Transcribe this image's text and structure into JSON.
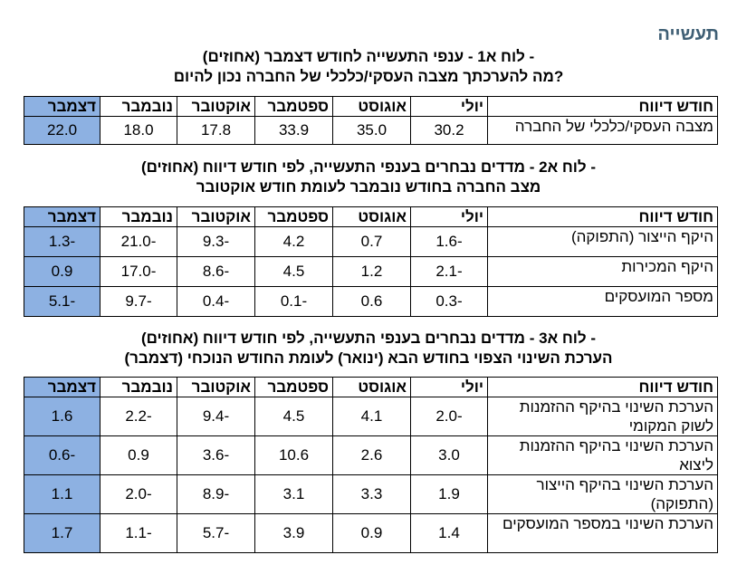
{
  "section_title": "תעשייה",
  "table1": {
    "title_line1": "לוח א1 - ענפי התעשייה לחודש דצמבר (אחוזים) -",
    "title_line2": "מה להערכתך מצבה העסקי/כלכלי של החברה נכון להיום?",
    "headers": [
      "חודש דיווח",
      "יולי",
      "אוגוסט",
      "ספטמבר",
      "אוקטובר",
      "נובמבר",
      "דצמבר"
    ],
    "rows": [
      {
        "label": "מצבה העסקי/כלכלי של החברה",
        "values": [
          "30.2",
          "35.0",
          "33.9",
          "17.8",
          "18.0",
          "22.0"
        ]
      }
    ]
  },
  "table2": {
    "title_line1": "לוח א2 - מדדים נבחרים בענפי התעשייה, לפי חודש דיווח (אחוזים) -",
    "title_line2": "מצב החברה בחודש נובמבר לעומת חודש אוקטובר",
    "headers": [
      "חודש דיווח",
      "יולי",
      "אוגוסט",
      "ספטמבר",
      "אוקטובר",
      "נובמבר",
      "דצמבר"
    ],
    "rows": [
      {
        "label": "היקף הייצור (התפוקה)",
        "values": [
          "-1.6",
          "0.7",
          "4.2",
          "-9.3",
          "-21.0",
          "-1.3"
        ]
      },
      {
        "label": "היקף המכירות",
        "values": [
          "-2.1",
          "1.2",
          "4.5",
          "-8.6",
          "-17.0",
          "0.9"
        ]
      },
      {
        "label": "מספר המועסקים",
        "values": [
          "-0.3",
          "0.6",
          "-0.1",
          "-0.4",
          "-9.7",
          "-5.1"
        ]
      }
    ]
  },
  "table3": {
    "title_line1": "לוח א3 - מדדים נבחרים בענפי התעשייה, לפי חודש דיווח (אחוזים) -",
    "title_line2": "הערכת השינוי הצפוי בחודש הבא (ינואר) לעומת החודש הנוכחי (דצמבר)",
    "headers": [
      "חודש דיווח",
      "יולי",
      "אוגוסט",
      "ספטמבר",
      "אוקטובר",
      "נובמבר",
      "דצמבר"
    ],
    "rows": [
      {
        "label": "הערכת השינוי בהיקף ההזמנות לשוק המקומי",
        "values": [
          "-2.0",
          "4.1",
          "4.5",
          "-9.4",
          "-2.2",
          "1.6"
        ]
      },
      {
        "label": "הערכת השינוי בהיקף ההזמנות ליצוא",
        "values": [
          "3.0",
          "2.6",
          "10.6",
          "-3.6",
          "0.9",
          "-0.6"
        ]
      },
      {
        "label": "הערכת השינוי בהיקף הייצור (התפוקה)",
        "values": [
          "1.9",
          "3.3",
          "3.1",
          "-8.9",
          "-2.0",
          "1.1"
        ]
      },
      {
        "label": "הערכת השינוי במספר המועסקים",
        "values": [
          "1.4",
          "0.9",
          "3.9",
          "-5.7",
          "-1.1",
          "1.7"
        ]
      }
    ]
  },
  "colors": {
    "highlight": "#8db1e2",
    "section_title": "#3f5f75"
  }
}
